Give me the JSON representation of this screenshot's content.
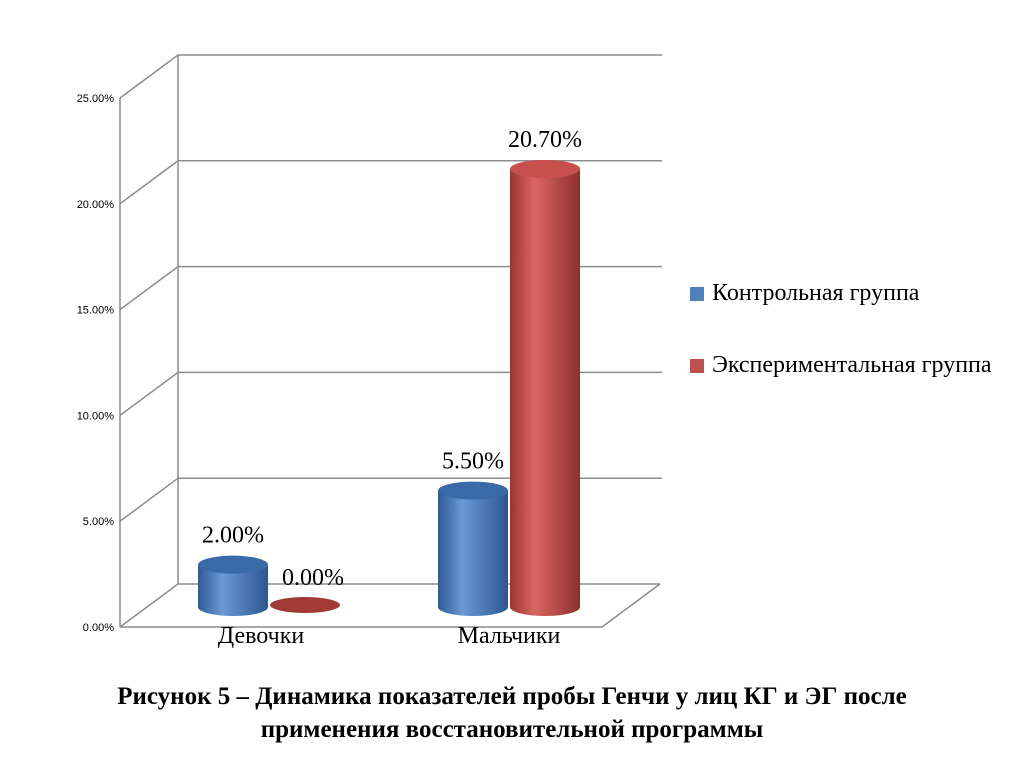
{
  "chart_data": {
    "type": "bar",
    "style": "3d-cylinder",
    "categories": [
      "Девочки",
      "Мальчики"
    ],
    "series": [
      {
        "name": "Контрольная группа",
        "values": [
          2.0,
          5.5
        ],
        "labels": [
          "2.00%",
          "5.50%"
        ],
        "color": "#4f81bd"
      },
      {
        "name": "Экспериментальная группа",
        "values": [
          0.0,
          20.7
        ],
        "labels": [
          "0.00%",
          "20.70%"
        ],
        "color": "#c0504d"
      }
    ],
    "ylim": [
      0,
      25
    ],
    "yticks": [
      "0.00%",
      "5.00%",
      "10.00%",
      "15.00%",
      "20.00%",
      "25.00%"
    ],
    "grid": true,
    "legend": "right"
  },
  "caption": {
    "line1": "Рисунок 5 – Динамика показателей пробы Генчи у лиц КГ и ЭГ после",
    "line2": "применения восстановительной программы"
  }
}
